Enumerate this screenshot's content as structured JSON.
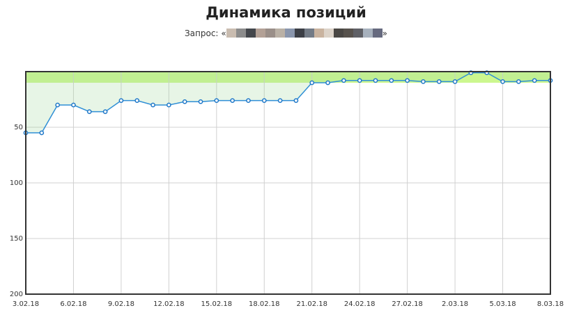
{
  "title": "Динамика позиций",
  "query": {
    "label": "Запрос:",
    "open_quote": "«",
    "close_quote": "»",
    "redacted_colors": [
      "#c9bcb0",
      "#8c8c8c",
      "#44474c",
      "#b3a196",
      "#9a8f89",
      "#bab1a6",
      "#8a96ad",
      "#3c3f46",
      "#737b86",
      "#c9b39f",
      "#dcd3c9",
      "#4a4744",
      "#57524d",
      "#5f6066",
      "#a7b1bd",
      "#666a7f"
    ]
  },
  "chart_data": {
    "type": "line",
    "title": "Динамика позиций",
    "xlabel": "",
    "ylabel": "",
    "y_reversed": true,
    "ylim": [
      0,
      200
    ],
    "y_ticks": [
      "50",
      "100",
      "150",
      "200"
    ],
    "x_tick_labels": [
      "3.02.18",
      "6.02.18",
      "9.02.18",
      "12.02.18",
      "15.02.18",
      "18.02.18",
      "21.02.18",
      "24.02.18",
      "27.02.18",
      "2.03.18",
      "5.03.18",
      "8.03.18"
    ],
    "top_band": {
      "from": 0,
      "to": 10,
      "color": "#ccf78f"
    },
    "grid": true,
    "colors": {
      "line": "#2f8fd6",
      "fill": "#9fd99a",
      "marker_fill": "#ffffff",
      "marker_stroke": "#1f78c8",
      "frame": "#333333",
      "grid": "#d0d0d0"
    },
    "x": [
      "3.02.18",
      "4.02.18",
      "5.02.18",
      "6.02.18",
      "7.02.18",
      "8.02.18",
      "9.02.18",
      "10.02.18",
      "11.02.18",
      "12.02.18",
      "13.02.18",
      "14.02.18",
      "15.02.18",
      "16.02.18",
      "17.02.18",
      "18.02.18",
      "19.02.18",
      "20.02.18",
      "21.02.18",
      "22.02.18",
      "23.02.18",
      "24.02.18",
      "25.02.18",
      "26.02.18",
      "27.02.18",
      "28.02.18",
      "1.03.18",
      "2.03.18",
      "3.03.18",
      "4.03.18",
      "5.03.18",
      "6.03.18",
      "7.03.18",
      "8.03.18"
    ],
    "series": [
      {
        "values": [
          55,
          55,
          30,
          30,
          36,
          36,
          26,
          26,
          30,
          30,
          27,
          27,
          26,
          26,
          26,
          26,
          26,
          26,
          10,
          10,
          8,
          8,
          8,
          8,
          8,
          9,
          9,
          9,
          1,
          1,
          9,
          9,
          8,
          8
        ]
      }
    ]
  }
}
